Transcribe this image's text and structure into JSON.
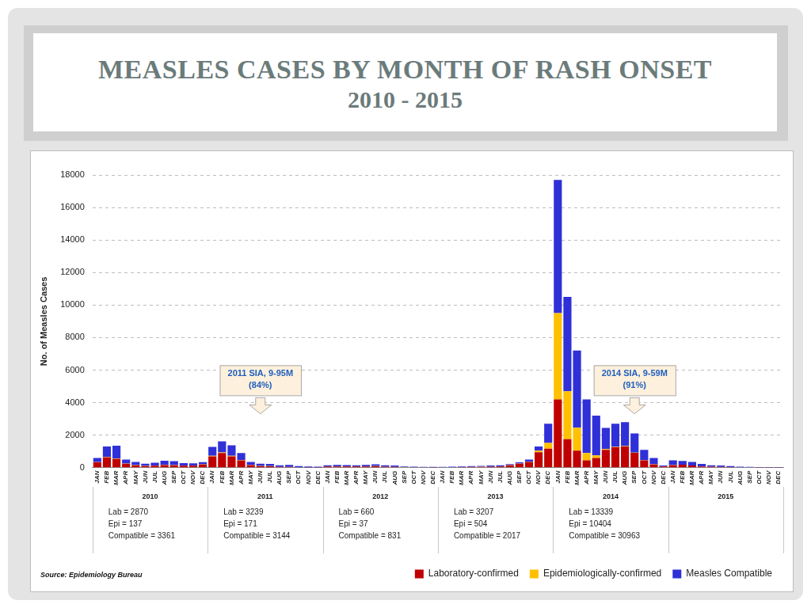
{
  "chart_data": {
    "type": "bar",
    "title": "MEASLES CASES BY MONTH OF RASH ONSET",
    "subtitle": "2010 - 2015",
    "y_label": "No. of Measles Cases",
    "stacked": true,
    "grid": true,
    "legend": "bottom",
    "categories": [
      "JAN",
      "FEB",
      "MAR",
      "APR",
      "MAY",
      "JUN",
      "JUL",
      "AUG",
      "SEP",
      "OCT",
      "NOV",
      "DEC",
      "JAN",
      "FEB",
      "MAR",
      "APR",
      "MAY",
      "JUN",
      "JUL",
      "AUG",
      "SEP",
      "OCT",
      "NOV",
      "DEC",
      "JAN",
      "FEB",
      "MAR",
      "APR",
      "MAY",
      "JUN",
      "JUL",
      "AUG",
      "SEP",
      "OCT",
      "NOV",
      "DEC",
      "JAN",
      "FEB",
      "MAR",
      "APR",
      "MAY",
      "JUN",
      "JUL",
      "AUG",
      "SEP",
      "OCT",
      "NOV",
      "DEC",
      "JAN",
      "FEB",
      "MAR",
      "APR",
      "MAY",
      "JUN",
      "JUL",
      "AUG",
      "SEP",
      "OCT",
      "NOV",
      "DEC",
      "JAN",
      "FEB",
      "MAR",
      "APR",
      "MAY",
      "JUN",
      "JUL",
      "AUG",
      "SEP",
      "OCT",
      "NOV",
      "DEC"
    ],
    "series": [
      {
        "name": "Laboratory-confirmed",
        "color": "#c00000",
        "values": [
          330,
          640,
          540,
          240,
          150,
          100,
          120,
          160,
          150,
          120,
          120,
          200,
          700,
          900,
          700,
          450,
          160,
          100,
          90,
          50,
          50,
          20,
          10,
          9,
          70,
          80,
          75,
          70,
          80,
          90,
          60,
          50,
          30,
          25,
          20,
          10,
          25,
          30,
          40,
          50,
          55,
          65,
          75,
          150,
          250,
          350,
          950,
          1167,
          4200,
          1750,
          1050,
          450,
          600,
          1100,
          1250,
          1300,
          909,
          450,
          200,
          80,
          150,
          180,
          130,
          80,
          60,
          50,
          40,
          25,
          20,
          15,
          15,
          15
        ]
      },
      {
        "name": "Epidemiologically-confirmed",
        "color": "#ffc000",
        "values": [
          10,
          15,
          20,
          15,
          10,
          10,
          10,
          12,
          10,
          8,
          7,
          10,
          30,
          40,
          35,
          25,
          10,
          8,
          8,
          5,
          5,
          3,
          1,
          1,
          3,
          4,
          4,
          3,
          4,
          5,
          4,
          3,
          2,
          2,
          2,
          1,
          1,
          1,
          2,
          2,
          2,
          3,
          3,
          5,
          10,
          20,
          100,
          355,
          5300,
          2950,
          1407,
          450,
          150,
          50,
          30,
          30,
          20,
          10,
          5,
          2,
          5,
          5,
          5,
          3,
          2,
          2,
          1,
          1,
          1,
          1,
          1,
          1
        ]
      },
      {
        "name": "Measles Compatible",
        "color": "#3030d8",
        "values": [
          260,
          645,
          790,
          245,
          190,
          140,
          170,
          258,
          240,
          152,
          143,
          128,
          550,
          680,
          640,
          425,
          180,
          142,
          132,
          95,
          115,
          77,
          59,
          49,
          77,
          86,
          81,
          77,
          86,
          116,
          86,
          87,
          38,
          33,
          28,
          36,
          24,
          29,
          38,
          48,
          53,
          62,
          72,
          65,
          70,
          130,
          250,
          1176,
          8200,
          5800,
          4750,
          3300,
          2450,
          1300,
          1420,
          1470,
          1180,
          640,
          395,
          58,
          295,
          235,
          215,
          147,
          88,
          78,
          59,
          34,
          29,
          24,
          24,
          24
        ]
      }
    ],
    "ylim": [
      0,
      18000
    ],
    "yticks": [
      0,
      2000,
      4000,
      6000,
      8000,
      10000,
      12000,
      14000,
      16000,
      18000
    ],
    "year_groups": [
      {
        "year": "2010",
        "notes": [
          "Lab = 2870",
          "Epi = 137",
          "Compatible = 3361"
        ]
      },
      {
        "year": "2011",
        "notes": [
          "Lab = 3239",
          "Epi = 171",
          "Compatible = 3144"
        ]
      },
      {
        "year": "2012",
        "notes": [
          "Lab = 660",
          "Epi = 37",
          "Compatible = 831"
        ]
      },
      {
        "year": "2013",
        "notes": [
          "Lab = 3207",
          "Epi = 504",
          "Compatible = 2017"
        ]
      },
      {
        "year": "2014",
        "notes": [
          "Lab = 13339",
          "Epi = 10404",
          "Compatible = 30963"
        ]
      },
      {
        "year": "2015"
      }
    ],
    "annotations": [
      {
        "text": [
          "2011 SIA, 9-95M",
          "(84%)"
        ]
      },
      {
        "text": [
          "2014 SIA, 9-59M",
          "(91%)"
        ]
      }
    ],
    "source": "Source: Epidemiology Bureau"
  }
}
